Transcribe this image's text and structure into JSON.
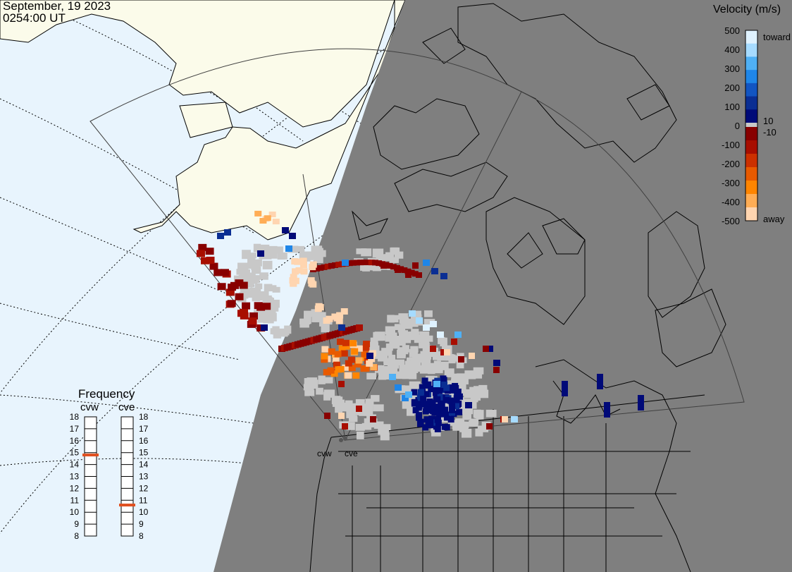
{
  "header": {
    "date": "September, 19 2023",
    "time": "0254:00 UT"
  },
  "legend": {
    "title": "Velocity (m/s)",
    "ticks": [
      "500",
      "400",
      "300",
      "200",
      "100",
      "0",
      "-100",
      "-200",
      "-300",
      "-400",
      "-500"
    ],
    "toward_label": "toward",
    "away_label": "away",
    "pos_small_label": "10",
    "neg_small_label": "-10",
    "colors": [
      "#dff2ff",
      "#a6dbff",
      "#4fb0f5",
      "#1f86e8",
      "#1255c2",
      "#0a2e93",
      "#000a78",
      "#880000",
      "#a80e00",
      "#cc3000",
      "#e85a00",
      "#ff8500",
      "#ffad55",
      "#ffd5b0"
    ]
  },
  "frequency": {
    "title": "Frequency",
    "radars": [
      {
        "name": "cvw",
        "value_mhz": 14.8
      },
      {
        "name": "cve",
        "value_mhz": 10.6
      }
    ],
    "scale": [
      "18",
      "17",
      "16",
      "15",
      "14",
      "13",
      "12",
      "11",
      "10",
      "9",
      "8"
    ],
    "marker_color": "#e05020"
  },
  "radar_sites": [
    {
      "label": "cvw"
    },
    {
      "label": "cve"
    }
  ],
  "map": {
    "ocean_color": "#e8f4fd",
    "land_color": "#fbfbea",
    "night_color": "#7f7f7f",
    "ground_scatter_color": "#c8c8c8"
  }
}
